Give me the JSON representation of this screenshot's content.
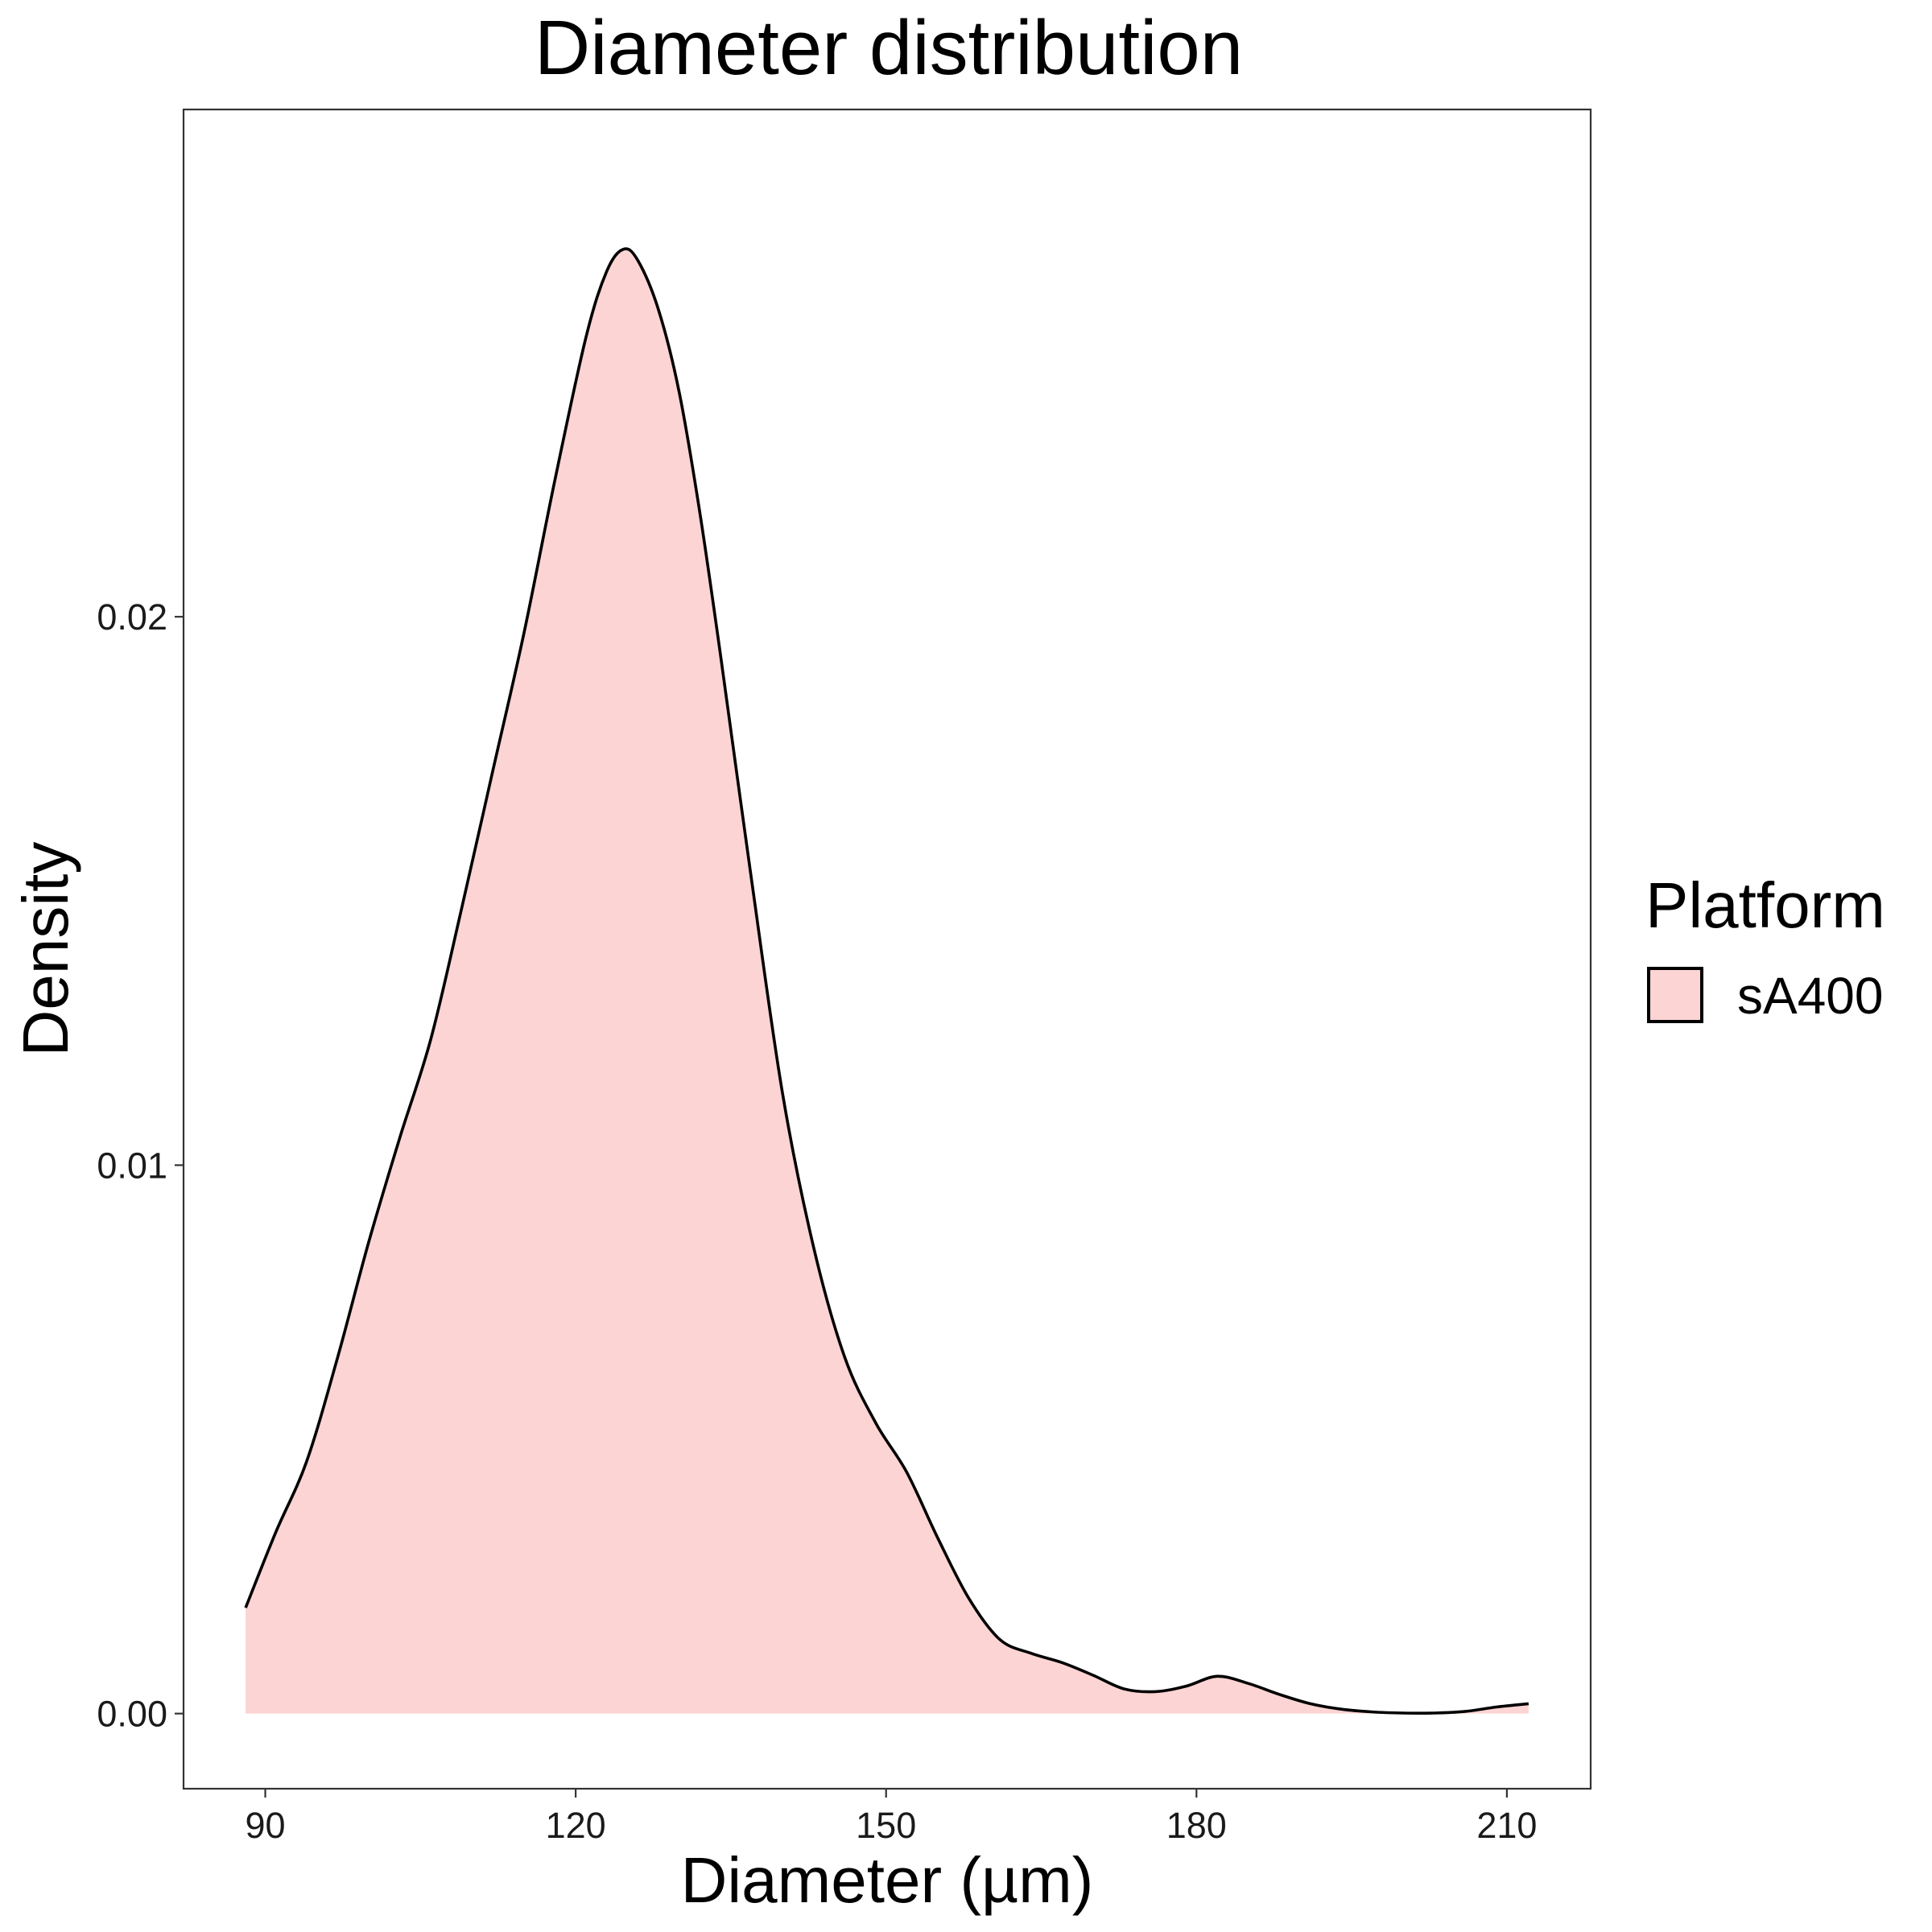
{
  "chart_data": {
    "type": "area",
    "title": "Diameter distribution",
    "xlabel": "Diameter (µm)",
    "ylabel": "Density",
    "xlim": [
      82.1,
      218.1
    ],
    "ylim": [
      -0.00137,
      0.02925
    ],
    "x_ticks": [
      90,
      120,
      150,
      180,
      210
    ],
    "x_tick_labels": [
      "90",
      "120",
      "150",
      "180",
      "210"
    ],
    "y_ticks": [
      0,
      0.01,
      0.02
    ],
    "y_tick_labels": [
      "0.00",
      "0.01",
      "0.02"
    ],
    "grid": false,
    "legend": {
      "title": "Platform",
      "position": "right"
    },
    "series": [
      {
        "name": "sA400",
        "fill": "#fbd4d3",
        "stroke": "#000000",
        "x": [
          88.1,
          91,
          94,
          97,
          100,
          103,
          106,
          109,
          112,
          115,
          118,
          121,
          123,
          124.6,
          126,
          128,
          130,
          132,
          134,
          137,
          140,
          143,
          146,
          149,
          152,
          155,
          158,
          161,
          164,
          167,
          170,
          173,
          176,
          179,
          182,
          185,
          188,
          191,
          194,
          197,
          200,
          203,
          206,
          209,
          212.1
        ],
        "y": [
          0.00193,
          0.0033,
          0.0046,
          0.0065,
          0.0086,
          0.0105,
          0.0123,
          0.0147,
          0.0172,
          0.0197,
          0.0225,
          0.0251,
          0.0263,
          0.0267,
          0.0265,
          0.0256,
          0.0241,
          0.0219,
          0.0193,
          0.0152,
          0.0113,
          0.0085,
          0.0065,
          0.0053,
          0.0044,
          0.0032,
          0.0021,
          0.00135,
          0.0011,
          0.00093,
          0.0007,
          0.00045,
          0.0004,
          0.0005,
          0.00068,
          0.00055,
          0.00035,
          0.00018,
          8e-05,
          3e-05,
          1e-05,
          1e-05,
          4e-05,
          0.00012,
          0.00018
        ]
      }
    ]
  }
}
